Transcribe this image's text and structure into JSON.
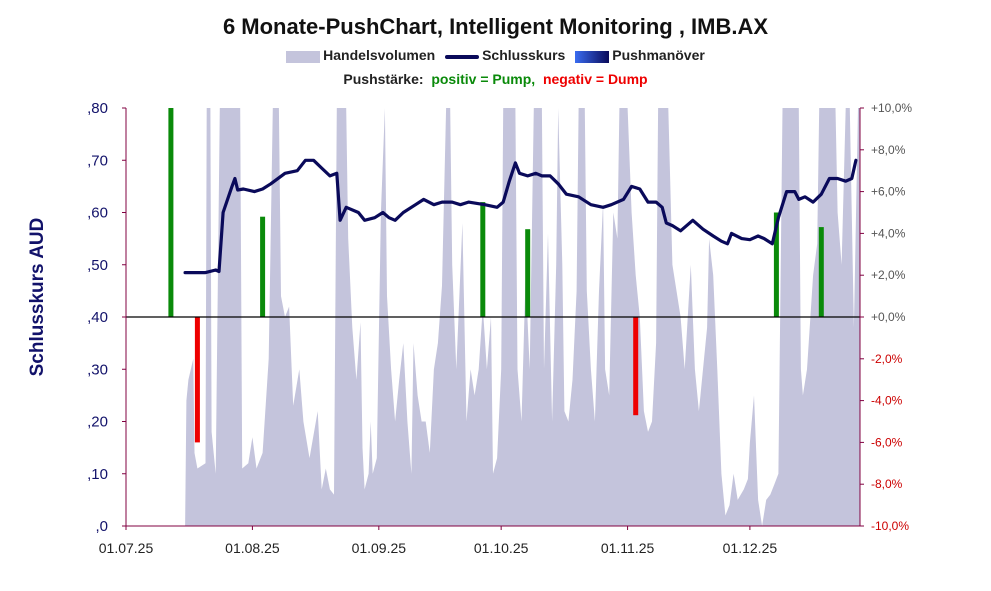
{
  "chart_data": {
    "type": "line",
    "title": "6 Monate-PushChart, Intelligent Monitoring , IMB.AX",
    "legend": {
      "volume": "Handelsvolumen",
      "close": "Schlusskurs",
      "push": "Pushmanöver"
    },
    "push_legend": {
      "prefix": "Pushstärke:",
      "positive": "positiv = Pump,",
      "negative": "negativ = Dump"
    },
    "ylabel": "Schlusskurs AUD",
    "ylim": [
      0,
      0.8
    ],
    "yticks": [
      ",0",
      ",10",
      ",20",
      ",30",
      ",40",
      ",50",
      ",60",
      ",70",
      ",80"
    ],
    "y2lim": [
      -10,
      10
    ],
    "y2ticks": [
      "-10,0%",
      "-8,0%",
      "-6,0%",
      "-4,0%",
      "-2,0%",
      "+0,0%",
      "+2,0%",
      "+4,0%",
      "+6,0%",
      "+8,0%",
      "+10,0%"
    ],
    "xlim_days": [
      0,
      180
    ],
    "xticks": [
      {
        "label": "01.07.25",
        "day": 0
      },
      {
        "label": "01.08.25",
        "day": 31
      },
      {
        "label": "01.09.25",
        "day": 62
      },
      {
        "label": "01.10.25",
        "day": 92
      },
      {
        "label": "01.11.25",
        "day": 123
      },
      {
        "label": "01.12.25",
        "day": 153
      }
    ],
    "close": [
      [
        14.5,
        0.485
      ],
      [
        19.5,
        0.485
      ],
      [
        22,
        0.49
      ],
      [
        22.8,
        0.487
      ],
      [
        23.8,
        0.6
      ],
      [
        26,
        0.65
      ],
      [
        26.7,
        0.665
      ],
      [
        27.4,
        0.643
      ],
      [
        28.8,
        0.645
      ],
      [
        31.5,
        0.64
      ],
      [
        33.5,
        0.645
      ],
      [
        35.5,
        0.655
      ],
      [
        39,
        0.675
      ],
      [
        42,
        0.68
      ],
      [
        44,
        0.7
      ],
      [
        46,
        0.7
      ],
      [
        48,
        0.685
      ],
      [
        50,
        0.67
      ],
      [
        51.7,
        0.675
      ],
      [
        52.5,
        0.585
      ],
      [
        54,
        0.61
      ],
      [
        57,
        0.6
      ],
      [
        58.5,
        0.585
      ],
      [
        61,
        0.59
      ],
      [
        63,
        0.6
      ],
      [
        64.5,
        0.59
      ],
      [
        66,
        0.585
      ],
      [
        68,
        0.6
      ],
      [
        71,
        0.615
      ],
      [
        73,
        0.625
      ],
      [
        75.5,
        0.615
      ],
      [
        77.5,
        0.62
      ],
      [
        80,
        0.62
      ],
      [
        82,
        0.615
      ],
      [
        84,
        0.62
      ],
      [
        88,
        0.615
      ],
      [
        91,
        0.61
      ],
      [
        92.5,
        0.62
      ],
      [
        94,
        0.66
      ],
      [
        95.5,
        0.695
      ],
      [
        96.5,
        0.675
      ],
      [
        98.5,
        0.67
      ],
      [
        100.5,
        0.675
      ],
      [
        102,
        0.67
      ],
      [
        104,
        0.67
      ],
      [
        106,
        0.655
      ],
      [
        108,
        0.635
      ],
      [
        111,
        0.63
      ],
      [
        114,
        0.615
      ],
      [
        117,
        0.61
      ],
      [
        119,
        0.615
      ],
      [
        122,
        0.625
      ],
      [
        124,
        0.65
      ],
      [
        126,
        0.645
      ],
      [
        128,
        0.62
      ],
      [
        130,
        0.62
      ],
      [
        131.5,
        0.61
      ],
      [
        132.5,
        0.58
      ],
      [
        134,
        0.575
      ],
      [
        136,
        0.565
      ],
      [
        139,
        0.585
      ],
      [
        141.5,
        0.568
      ],
      [
        144,
        0.555
      ],
      [
        146,
        0.545
      ],
      [
        147.5,
        0.54
      ],
      [
        148.5,
        0.56
      ],
      [
        151,
        0.55
      ],
      [
        153,
        0.548
      ],
      [
        155,
        0.555
      ],
      [
        156.5,
        0.55
      ],
      [
        158.5,
        0.54
      ],
      [
        160,
        0.59
      ],
      [
        162,
        0.64
      ],
      [
        164,
        0.64
      ],
      [
        165,
        0.625
      ],
      [
        166.5,
        0.63
      ],
      [
        168.5,
        0.62
      ],
      [
        170.5,
        0.635
      ],
      [
        172.5,
        0.665
      ],
      [
        174.5,
        0.665
      ],
      [
        176.5,
        0.66
      ],
      [
        178,
        0.665
      ],
      [
        179,
        0.7
      ]
    ],
    "volume": [
      [
        14.5,
        0
      ],
      [
        14.8,
        0.24
      ],
      [
        15.3,
        0.28
      ],
      [
        16.5,
        0.32
      ],
      [
        16.8,
        0.14
      ],
      [
        17.5,
        0.11
      ],
      [
        19.5,
        0.12
      ],
      [
        19.8,
        0.8
      ],
      [
        20.7,
        0.8
      ],
      [
        21,
        0.18
      ],
      [
        22,
        0.1
      ],
      [
        23,
        0.8
      ],
      [
        28,
        0.8
      ],
      [
        28.5,
        0.11
      ],
      [
        30,
        0.12
      ],
      [
        31,
        0.17
      ],
      [
        32,
        0.11
      ],
      [
        33.5,
        0.14
      ],
      [
        35,
        0.32
      ],
      [
        36,
        0.8
      ],
      [
        37.5,
        0.8
      ],
      [
        38,
        0.44
      ],
      [
        39,
        0.4
      ],
      [
        40,
        0.42
      ],
      [
        41,
        0.23
      ],
      [
        42.5,
        0.3
      ],
      [
        43.5,
        0.2
      ],
      [
        45,
        0.13
      ],
      [
        47,
        0.22
      ],
      [
        48,
        0.07
      ],
      [
        49,
        0.11
      ],
      [
        50,
        0.07
      ],
      [
        51,
        0.06
      ],
      [
        51.7,
        0.8
      ],
      [
        54,
        0.8
      ],
      [
        54.5,
        0.55
      ],
      [
        55.5,
        0.38
      ],
      [
        56.5,
        0.28
      ],
      [
        57.5,
        0.39
      ],
      [
        58,
        0.15
      ],
      [
        58.5,
        0.07
      ],
      [
        59.5,
        0.1
      ],
      [
        60,
        0.2
      ],
      [
        60.5,
        0.1
      ],
      [
        61.5,
        0.13
      ],
      [
        62.5,
        0.6
      ],
      [
        63.5,
        0.8
      ],
      [
        64,
        0.44
      ],
      [
        65,
        0.3
      ],
      [
        66,
        0.2
      ],
      [
        67,
        0.28
      ],
      [
        68,
        0.35
      ],
      [
        69,
        0.2
      ],
      [
        70,
        0.1
      ],
      [
        70.5,
        0.35
      ],
      [
        71.5,
        0.25
      ],
      [
        72.5,
        0.2
      ],
      [
        73.5,
        0.2
      ],
      [
        74.5,
        0.14
      ],
      [
        75.5,
        0.3
      ],
      [
        76.5,
        0.35
      ],
      [
        77.5,
        0.46
      ],
      [
        78.5,
        0.8
      ],
      [
        79.5,
        0.8
      ],
      [
        80,
        0.5
      ],
      [
        81,
        0.3
      ],
      [
        82.5,
        0.58
      ],
      [
        83.5,
        0.2
      ],
      [
        84.5,
        0.3
      ],
      [
        85.5,
        0.25
      ],
      [
        86.5,
        0.3
      ],
      [
        87.5,
        0.42
      ],
      [
        88.5,
        0.3
      ],
      [
        89.5,
        0.4
      ],
      [
        90,
        0.1
      ],
      [
        91,
        0.13
      ],
      [
        92,
        0.3
      ],
      [
        92.5,
        0.8
      ],
      [
        95.5,
        0.8
      ],
      [
        96,
        0.3
      ],
      [
        97,
        0.2
      ],
      [
        98,
        0.48
      ],
      [
        99,
        0.3
      ],
      [
        100,
        0.8
      ],
      [
        102,
        0.8
      ],
      [
        102.5,
        0.3
      ],
      [
        103.5,
        0.56
      ],
      [
        104.5,
        0.2
      ],
      [
        105.5,
        0.5
      ],
      [
        106,
        0.8
      ],
      [
        107,
        0.5
      ],
      [
        107.5,
        0.22
      ],
      [
        108.5,
        0.2
      ],
      [
        109.5,
        0.28
      ],
      [
        110.5,
        0.45
      ],
      [
        111,
        0.8
      ],
      [
        112.5,
        0.8
      ],
      [
        113,
        0.45
      ],
      [
        114,
        0.3
      ],
      [
        115,
        0.2
      ],
      [
        116,
        0.45
      ],
      [
        117,
        0.62
      ],
      [
        117.5,
        0.3
      ],
      [
        118.5,
        0.25
      ],
      [
        119.5,
        0.6
      ],
      [
        120.5,
        0.55
      ],
      [
        121,
        0.8
      ],
      [
        123,
        0.8
      ],
      [
        124,
        0.6
      ],
      [
        125,
        0.48
      ],
      [
        126,
        0.4
      ],
      [
        127,
        0.22
      ],
      [
        128,
        0.18
      ],
      [
        129,
        0.2
      ],
      [
        130,
        0.35
      ],
      [
        130.5,
        0.8
      ],
      [
        133,
        0.8
      ],
      [
        134,
        0.5
      ],
      [
        135,
        0.45
      ],
      [
        136,
        0.4
      ],
      [
        137,
        0.3
      ],
      [
        138.5,
        0.5
      ],
      [
        139.5,
        0.3
      ],
      [
        140.5,
        0.22
      ],
      [
        141.5,
        0.3
      ],
      [
        142.5,
        0.38
      ],
      [
        143,
        0.55
      ],
      [
        144,
        0.48
      ],
      [
        145,
        0.3
      ],
      [
        146,
        0.1
      ],
      [
        147,
        0.02
      ],
      [
        148,
        0.04
      ],
      [
        149,
        0.1
      ],
      [
        150,
        0.05
      ],
      [
        151.5,
        0.07
      ],
      [
        152.5,
        0.09
      ],
      [
        153,
        0.16
      ],
      [
        154,
        0.25
      ],
      [
        155,
        0.05
      ],
      [
        156,
        0
      ],
      [
        157,
        0.05
      ],
      [
        158,
        0.06
      ],
      [
        159,
        0.08
      ],
      [
        160,
        0.1
      ],
      [
        161,
        0.8
      ],
      [
        165,
        0.8
      ],
      [
        165.5,
        0.3
      ],
      [
        166,
        0.25
      ],
      [
        167,
        0.3
      ],
      [
        168.5,
        0.48
      ],
      [
        169.5,
        0.54
      ],
      [
        170,
        0.8
      ],
      [
        174,
        0.8
      ],
      [
        174.5,
        0.6
      ],
      [
        175.5,
        0.5
      ],
      [
        176.5,
        0.8
      ],
      [
        177.5,
        0.8
      ],
      [
        178.5,
        0.38
      ],
      [
        179.5,
        0.8
      ],
      [
        180,
        0.8
      ],
      [
        180,
        0
      ]
    ],
    "push": [
      {
        "day": 11,
        "pct": 10.0
      },
      {
        "day": 17.5,
        "pct": -6.0
      },
      {
        "day": 33.5,
        "pct": 4.8
      },
      {
        "day": 87.5,
        "pct": 5.5
      },
      {
        "day": 98.5,
        "pct": 4.2
      },
      {
        "day": 125,
        "pct": -4.7
      },
      {
        "day": 159.5,
        "pct": 5.0
      },
      {
        "day": 170.5,
        "pct": 4.3
      }
    ],
    "colors": {
      "volume": "#c4c4dc",
      "close": "#0a0a5a",
      "pump": "#0a8a0a",
      "dump": "#ee0000",
      "axis": "#800040",
      "zero_line": "#000000",
      "left_ticks": "#12126a",
      "right_ticks_pos": "#555555",
      "right_ticks_neg": "#cc0000"
    }
  }
}
